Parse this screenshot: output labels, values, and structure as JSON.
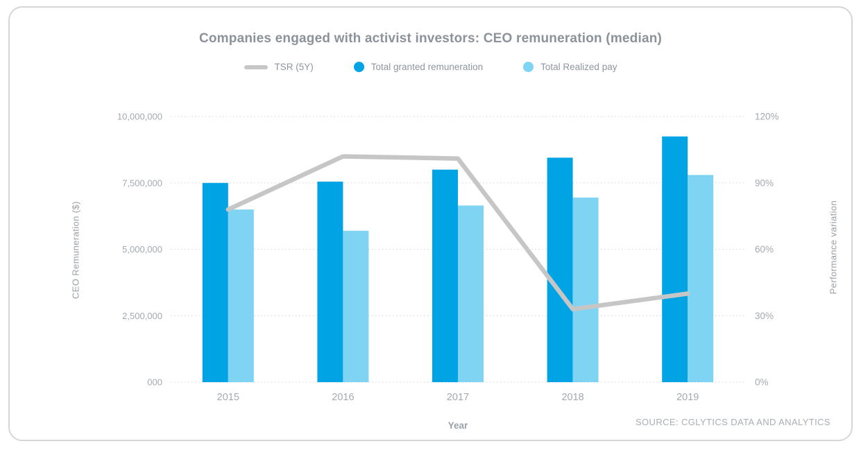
{
  "card": {
    "title": "Companies engaged with activist investors: CEO remuneration (median)"
  },
  "legend": [
    {
      "label": "TSR (5Y)",
      "type": "line",
      "color": "#c6c6c6"
    },
    {
      "label": "Total granted remuneration",
      "type": "dot",
      "color": "#00a3e4"
    },
    {
      "label": "Total Realized pay",
      "type": "dot",
      "color": "#7fd4f4"
    }
  ],
  "chart_data": {
    "type": "bar",
    "categories": [
      "2015",
      "2016",
      "2017",
      "2018",
      "2019"
    ],
    "series": [
      {
        "name": "Total granted remuneration",
        "type": "bar",
        "axis": "left",
        "color": "#00a3e4",
        "values": [
          7500000,
          7550000,
          8000000,
          8450000,
          9250000
        ]
      },
      {
        "name": "Total Realized pay",
        "type": "bar",
        "axis": "left",
        "color": "#7fd4f4",
        "values": [
          6500000,
          5700000,
          6650000,
          6950000,
          7800000
        ]
      },
      {
        "name": "TSR (5Y)",
        "type": "line",
        "axis": "right",
        "color": "#c6c6c6",
        "values": [
          78,
          102,
          101,
          33,
          40
        ]
      }
    ],
    "left_axis": {
      "label": "CEO Remuneration ($)",
      "ticks": [
        "10,000,000",
        "7,500,000",
        "5,000,000",
        "2,500,000",
        "000"
      ],
      "min": 0,
      "max": 10000000
    },
    "right_axis": {
      "label": "Performance variation",
      "ticks": [
        "120%",
        "90%",
        "60%",
        "30%",
        "0%"
      ],
      "min": 0,
      "max": 120
    },
    "xlabel": "Year",
    "grid": "horizontal-dotted",
    "legend_position": "top"
  },
  "source": "SOURCE: CGLYTICS DATA AND ANALYTICS"
}
